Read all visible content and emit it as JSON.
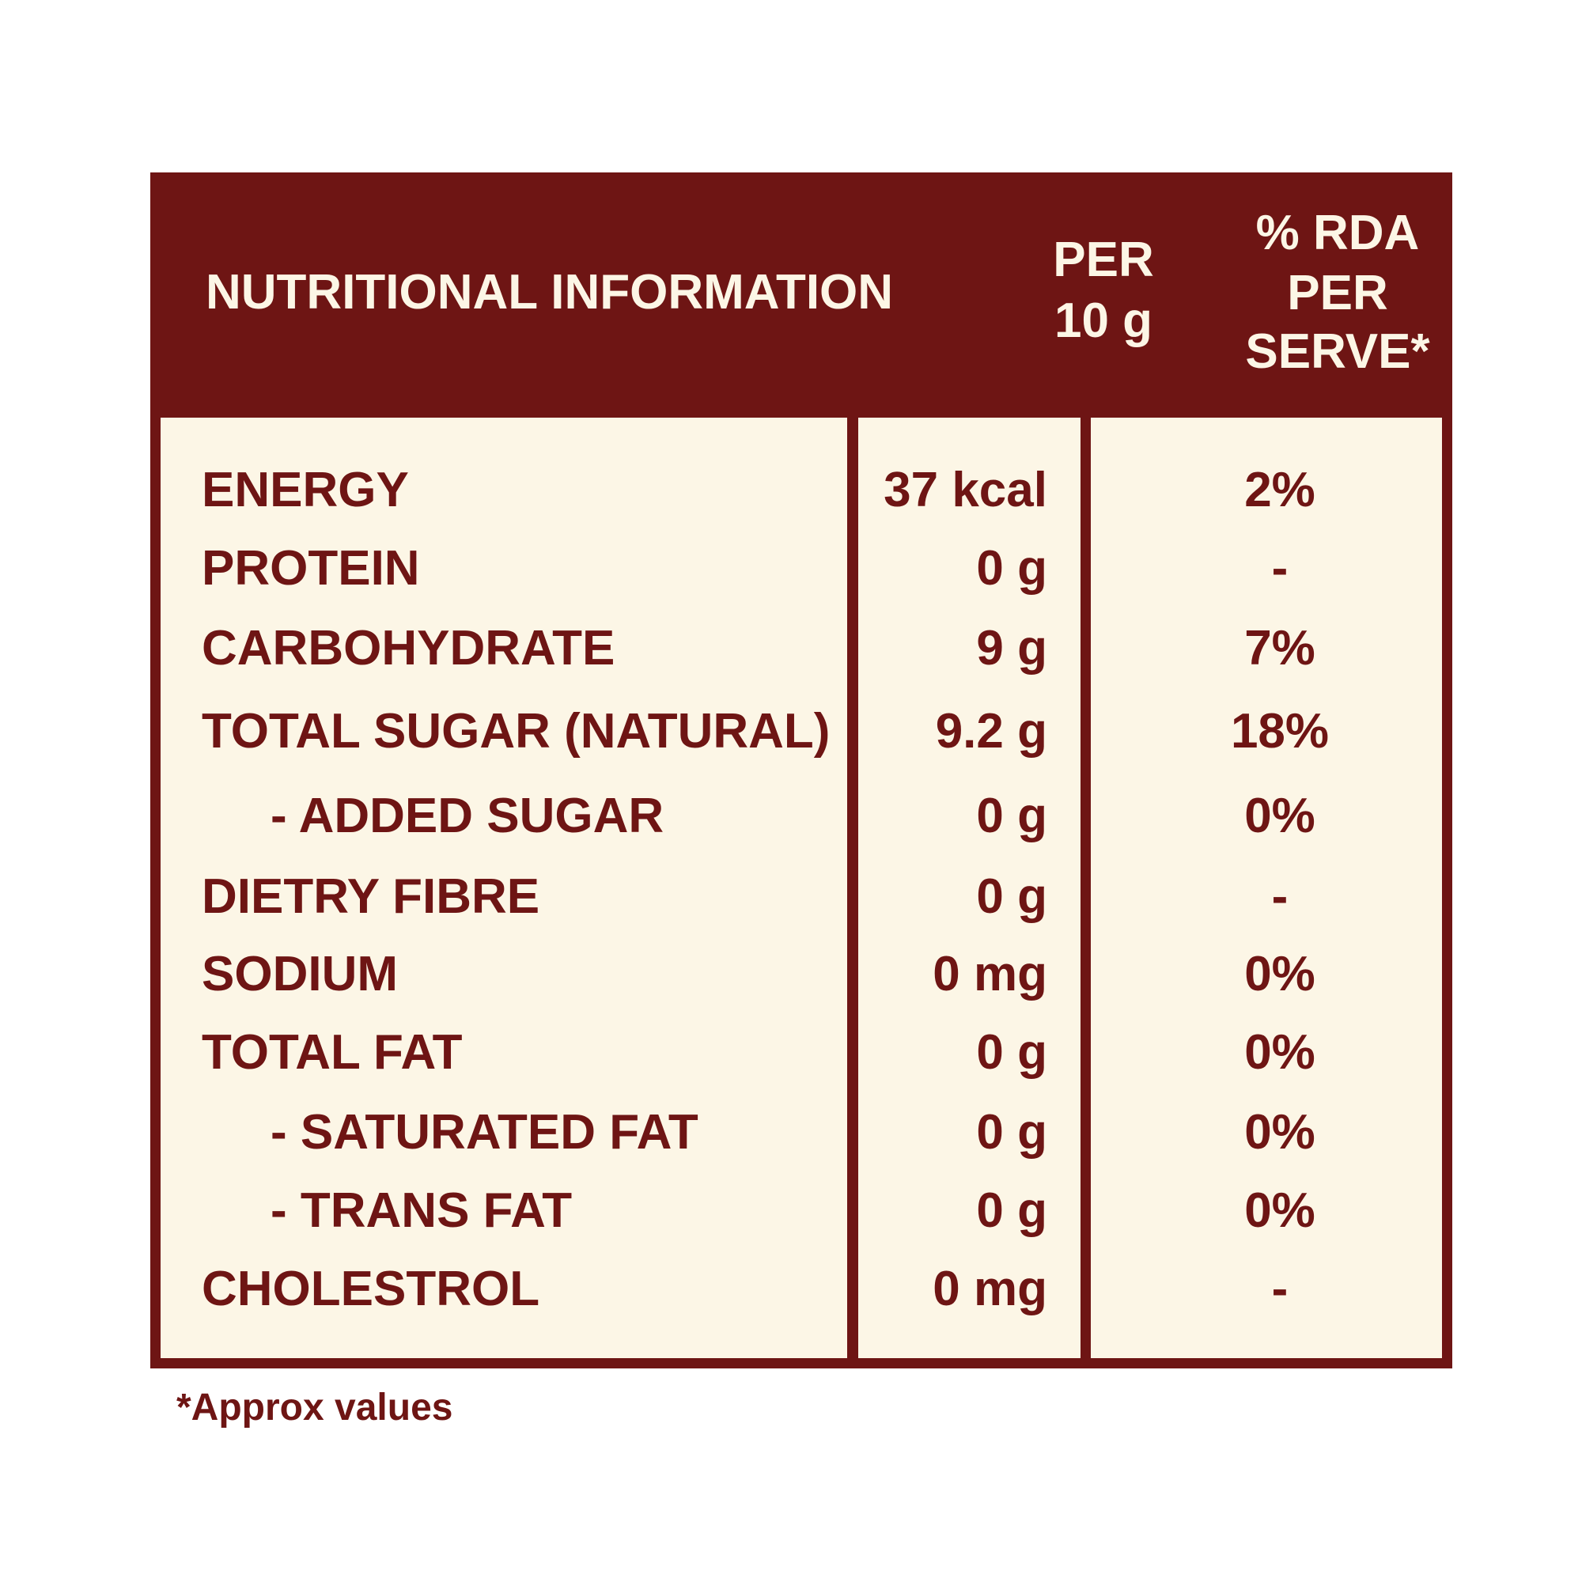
{
  "header": {
    "title": "NUTRITIONAL INFORMATION",
    "per_column": [
      "PER",
      "10 g"
    ],
    "rda_column": [
      "% RDA",
      "PER",
      "SERVE*"
    ]
  },
  "table": {
    "rows": [
      [
        "ENERGY",
        "37 kcal",
        "2%"
      ],
      [
        "PROTEIN",
        "0 g",
        "-"
      ],
      [
        "CARBOHYDRATE",
        "9 g",
        "7%"
      ],
      [
        "TOTAL SUGAR (NATURAL)",
        "9.2 g",
        "18%"
      ],
      [
        "- ADDED SUGAR",
        "0 g",
        "0%"
      ],
      [
        "DIETRY FIBRE",
        "0 g",
        "-"
      ],
      [
        "SODIUM",
        "0 mg",
        "0%"
      ],
      [
        "TOTAL FAT",
        "0 g",
        "0%"
      ],
      [
        "- SATURATED FAT",
        "0 g",
        "0%"
      ],
      [
        "- TRANS FAT",
        "0 g",
        "0%"
      ],
      [
        "CHOLESTROL",
        "0 mg",
        "-"
      ]
    ]
  },
  "footnote": "*Approx values"
}
